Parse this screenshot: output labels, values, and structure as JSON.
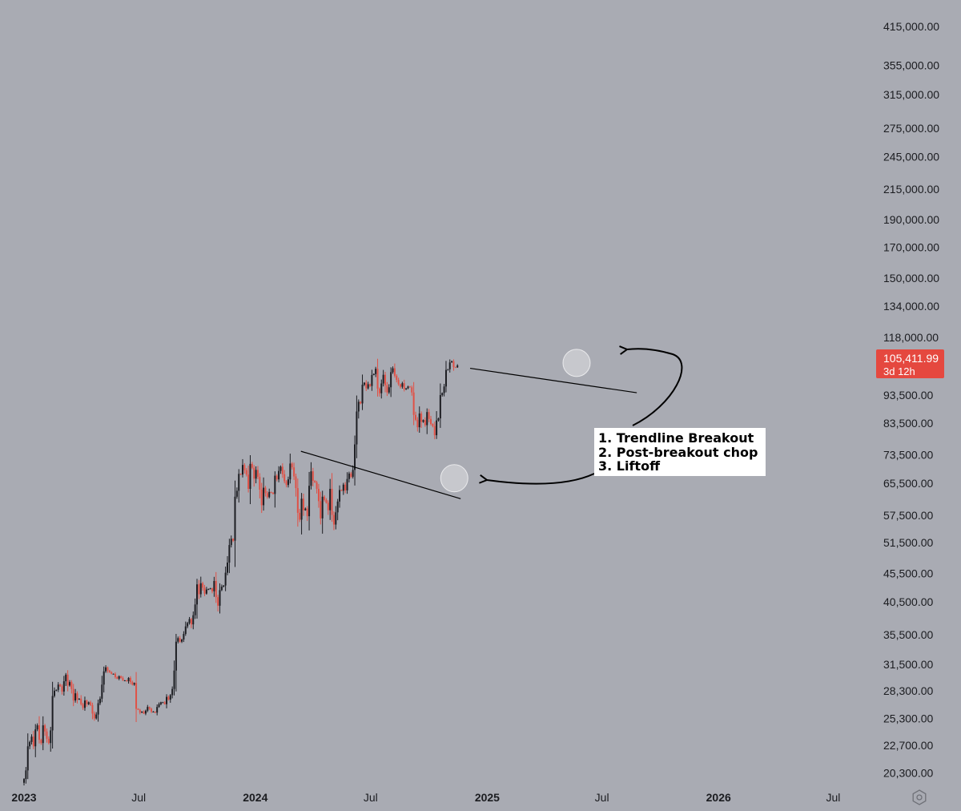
{
  "chart_data": {
    "type": "candlestick",
    "y_scale": "log",
    "ylim": [
      19300,
      440000
    ],
    "y_ticks": [
      "415,000.00",
      "355,000.00",
      "315,000.00",
      "275,000.00",
      "245,000.00",
      "215,000.00",
      "190,000.00",
      "170,000.00",
      "150,000.00",
      "134,000.00",
      "118,000.00",
      "93,500.00",
      "83,500.00",
      "73,500.00",
      "65,500.00",
      "57,500.00",
      "51,500.00",
      "45,500.00",
      "40,500.00",
      "35,500.00",
      "31,500.00",
      "28,300.00",
      "25,300.00",
      "22,700.00",
      "20,300.00"
    ],
    "x_ticks": [
      {
        "label": "2023",
        "date": "2023-01-01",
        "year": true
      },
      {
        "label": "Jul",
        "date": "2023-07-01",
        "year": false
      },
      {
        "label": "2024",
        "date": "2024-01-01",
        "year": true
      },
      {
        "label": "Jul",
        "date": "2024-07-01",
        "year": false
      },
      {
        "label": "2025",
        "date": "2025-01-01",
        "year": true
      },
      {
        "label": "Jul",
        "date": "2025-07-01",
        "year": false
      },
      {
        "label": "2026",
        "date": "2026-01-01",
        "year": true
      },
      {
        "label": "Jul",
        "date": "2026-07-01",
        "year": false
      }
    ],
    "x_range": [
      "2023-01-01",
      "2026-08-20"
    ],
    "candle_period": "3d",
    "candles_start": "2023-01-01",
    "closes": [
      19800,
      20500,
      22600,
      23000,
      23500,
      22600,
      24200,
      24600,
      23200,
      22900,
      24600,
      24000,
      23300,
      22900,
      24100,
      27700,
      28300,
      28400,
      29000,
      28800,
      28200,
      29400,
      30200,
      28900,
      29300,
      28500,
      27200,
      28000,
      27300,
      27400,
      26800,
      26400,
      27200,
      26800,
      27000,
      26700,
      25800,
      25300,
      25700,
      26900,
      27400,
      29000,
      30600,
      31100,
      30700,
      30500,
      30300,
      30300,
      29900,
      29700,
      30000,
      29800,
      29500,
      29500,
      29400,
      29800,
      29300,
      29000,
      29200,
      26300,
      26200,
      25900,
      26000,
      25800,
      26100,
      26500,
      26300,
      26000,
      26000,
      25900,
      26500,
      26800,
      27000,
      27000,
      26800,
      27600,
      27300,
      27800,
      28500,
      30700,
      34500,
      35000,
      34500,
      34800,
      35600,
      36700,
      37200,
      37800,
      37000,
      38400,
      40100,
      43500,
      41800,
      43700,
      42900,
      41900,
      42600,
      42700,
      42800,
      42300,
      44100,
      41300,
      39900,
      42500,
      43100,
      43300,
      45600,
      47500,
      51000,
      52300,
      51900,
      62000,
      63500,
      68000,
      67800,
      70500,
      69000,
      67800,
      64000,
      70800,
      69700,
      66700,
      69100,
      67200,
      63800,
      59900,
      64300,
      62900,
      61900,
      63200,
      63000,
      62700,
      67500,
      66500,
      68800,
      70000,
      67900,
      66000,
      65000,
      66500,
      70900,
      69800,
      67300,
      64200,
      58100,
      56500,
      61500,
      58700,
      59100,
      57300,
      64800,
      68700,
      66100,
      65700,
      64000,
      60900,
      56800,
      62000,
      61200,
      60500,
      58700,
      64000,
      57600,
      55400,
      58200,
      60800,
      63700,
      63500,
      65100,
      63600,
      66600,
      68100,
      67200,
      69100,
      76600,
      87500,
      91000,
      90400,
      97500,
      98300,
      96100,
      97700,
      97000,
      101400,
      101800,
      104000,
      96000,
      94200,
      98000,
      101500,
      97300,
      94500,
      96500,
      102600,
      104200,
      101100,
      99400,
      97700,
      96700,
      98100,
      95700,
      96100,
      96800,
      96500,
      94500,
      86300,
      84600,
      82100,
      86800,
      83900,
      84500,
      82800,
      87300,
      84900,
      83200,
      82500,
      79500,
      84400,
      85100,
      93500,
      94300,
      96800,
      103500,
      103800,
      106700,
      107200,
      104700,
      104600,
      105412
    ],
    "price_tag": {
      "price": "105,411.99",
      "countdown": "3d 12h"
    },
    "colors": {
      "up": "#1c1d22",
      "down": "#e05146",
      "price_tag": "#e5483f",
      "background": "#a9abb3"
    },
    "annotation_lines": [
      "1. Trendline Breakout",
      "2. Post-breakout chop",
      "3. Liftoff"
    ],
    "trendlines": [
      {
        "from": [
          "2024-03-13",
          74500
        ],
        "to": [
          "2024-11-20",
          61500
        ]
      },
      {
        "from": [
          "2024-12-05",
          104200
        ],
        "to": [
          "2025-08-25",
          94400
        ]
      }
    ],
    "highlight_circles": [
      {
        "date": "2024-11-10",
        "price": 66800
      },
      {
        "date": "2025-05-22",
        "price": 106500
      }
    ]
  },
  "icons": {
    "settings": "hexagon-settings-icon"
  }
}
